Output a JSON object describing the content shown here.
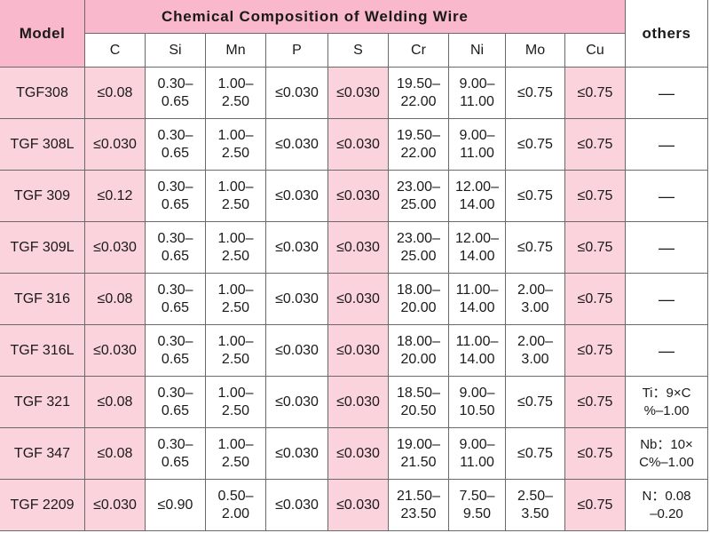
{
  "table": {
    "model_header": "Model",
    "title": "Chemical Composition of Welding Wire",
    "others_header": "others",
    "columns": [
      "C",
      "Si",
      "Mn",
      "P",
      "S",
      "Cr",
      "Ni",
      "Mo",
      "Cu"
    ],
    "rows": [
      {
        "model": "TGF308",
        "C": "≤0.08",
        "Si": "0.30–\n0.65",
        "Mn": "1.00–\n2.50",
        "P": "≤0.030",
        "S": "≤0.030",
        "Cr": "19.50–\n22.00",
        "Ni": "9.00–\n11.00",
        "Mo": "≤0.75",
        "Cu": "≤0.75",
        "others": "—"
      },
      {
        "model": "TGF 308L",
        "C": "≤0.030",
        "Si": "0.30–\n0.65",
        "Mn": "1.00–\n2.50",
        "P": "≤0.030",
        "S": "≤0.030",
        "Cr": "19.50–\n22.00",
        "Ni": "9.00–\n11.00",
        "Mo": "≤0.75",
        "Cu": "≤0.75",
        "others": "—"
      },
      {
        "model": "TGF 309",
        "C": "≤0.12",
        "Si": "0.30–\n0.65",
        "Mn": "1.00–\n2.50",
        "P": "≤0.030",
        "S": "≤0.030",
        "Cr": "23.00–\n25.00",
        "Ni": "12.00–\n14.00",
        "Mo": "≤0.75",
        "Cu": "≤0.75",
        "others": "—"
      },
      {
        "model": "TGF 309L",
        "C": "≤0.030",
        "Si": "0.30–\n0.65",
        "Mn": "1.00–\n2.50",
        "P": "≤0.030",
        "S": "≤0.030",
        "Cr": "23.00–\n25.00",
        "Ni": "12.00–\n14.00",
        "Mo": "≤0.75",
        "Cu": "≤0.75",
        "others": "—"
      },
      {
        "model": "TGF 316",
        "C": "≤0.08",
        "Si": "0.30–\n0.65",
        "Mn": "1.00–\n2.50",
        "P": "≤0.030",
        "S": "≤0.030",
        "Cr": "18.00–\n20.00",
        "Ni": "11.00–\n14.00",
        "Mo": "2.00–\n3.00",
        "Cu": "≤0.75",
        "others": "—"
      },
      {
        "model": "TGF 316L",
        "C": "≤0.030",
        "Si": "0.30–\n0.65",
        "Mn": "1.00–\n2.50",
        "P": "≤0.030",
        "S": "≤0.030",
        "Cr": "18.00–\n20.00",
        "Ni": "11.00–\n14.00",
        "Mo": "2.00–\n3.00",
        "Cu": "≤0.75",
        "others": "—"
      },
      {
        "model": "TGF 321",
        "C": "≤0.08",
        "Si": "0.30–\n0.65",
        "Mn": "1.00–\n2.50",
        "P": "≤0.030",
        "S": "≤0.030",
        "Cr": "18.50–\n20.50",
        "Ni": "9.00–\n10.50",
        "Mo": "≤0.75",
        "Cu": "≤0.75",
        "others": "Ti：9×C\n%–1.00"
      },
      {
        "model": "TGF 347",
        "C": "≤0.08",
        "Si": "0.30–\n0.65",
        "Mn": "1.00–\n2.50",
        "P": "≤0.030",
        "S": "≤0.030",
        "Cr": "19.00–\n21.50",
        "Ni": "9.00–\n11.00",
        "Mo": "≤0.75",
        "Cu": "≤0.75",
        "others": "Nb：10×\nC%–1.00"
      },
      {
        "model": "TGF 2209",
        "C": "≤0.030",
        "Si": "≤0.90",
        "Mn": "0.50–\n2.00",
        "P": "≤0.030",
        "S": "≤0.030",
        "Cr": "21.50–\n23.50",
        "Ni": "7.50–\n9.50",
        "Mo": "2.50–\n3.50",
        "Cu": "≤0.75",
        "others": "N：0.08\n–0.20"
      }
    ]
  },
  "colors": {
    "header_pink": "#f9b8cc",
    "cell_pink": "#fbd3dc",
    "cell_white": "#ffffff",
    "grid_line": "#6a6a6a"
  }
}
